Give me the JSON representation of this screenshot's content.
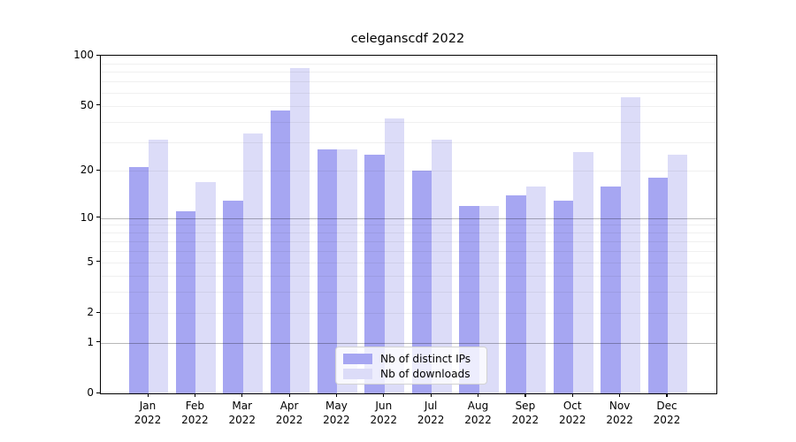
{
  "chart_data": {
    "type": "bar",
    "title": "celeganscdf 2022",
    "categories": [
      "Jan 2022",
      "Feb 2022",
      "Mar 2022",
      "Apr 2022",
      "May 2022",
      "Jun 2022",
      "Jul 2022",
      "Aug 2022",
      "Sep 2022",
      "Oct 2022",
      "Nov 2022",
      "Dec 2022"
    ],
    "series": [
      {
        "name": "Nb of distinct IPs",
        "color": "#a6a6f2",
        "values": [
          21,
          11,
          13,
          47,
          27,
          25,
          20,
          12,
          14,
          13,
          16,
          18
        ]
      },
      {
        "name": "Nb of downloads",
        "color": "#dcdcf8",
        "values": [
          31,
          17,
          34,
          84,
          27,
          42,
          31,
          12,
          16,
          26,
          56,
          25
        ]
      }
    ],
    "xlabel": "",
    "ylabel": "",
    "yscale": "log1p",
    "ylim": [
      0,
      100
    ],
    "y_tick_values": [
      100,
      50,
      20,
      10,
      5,
      2,
      1,
      0
    ],
    "y_tick_labels": [
      "100",
      "50",
      "20",
      "10",
      "5",
      "2",
      "1",
      "0"
    ],
    "minor_grid_values": [
      2,
      3,
      4,
      5,
      6,
      7,
      8,
      9,
      20,
      30,
      40,
      50,
      60,
      70,
      80,
      90
    ],
    "major_grid_values": [
      1,
      10
    ],
    "grid": true,
    "legend_position": "lower center",
    "legend_entries": [
      "Nb of distinct IPs",
      "Nb of downloads"
    ]
  }
}
